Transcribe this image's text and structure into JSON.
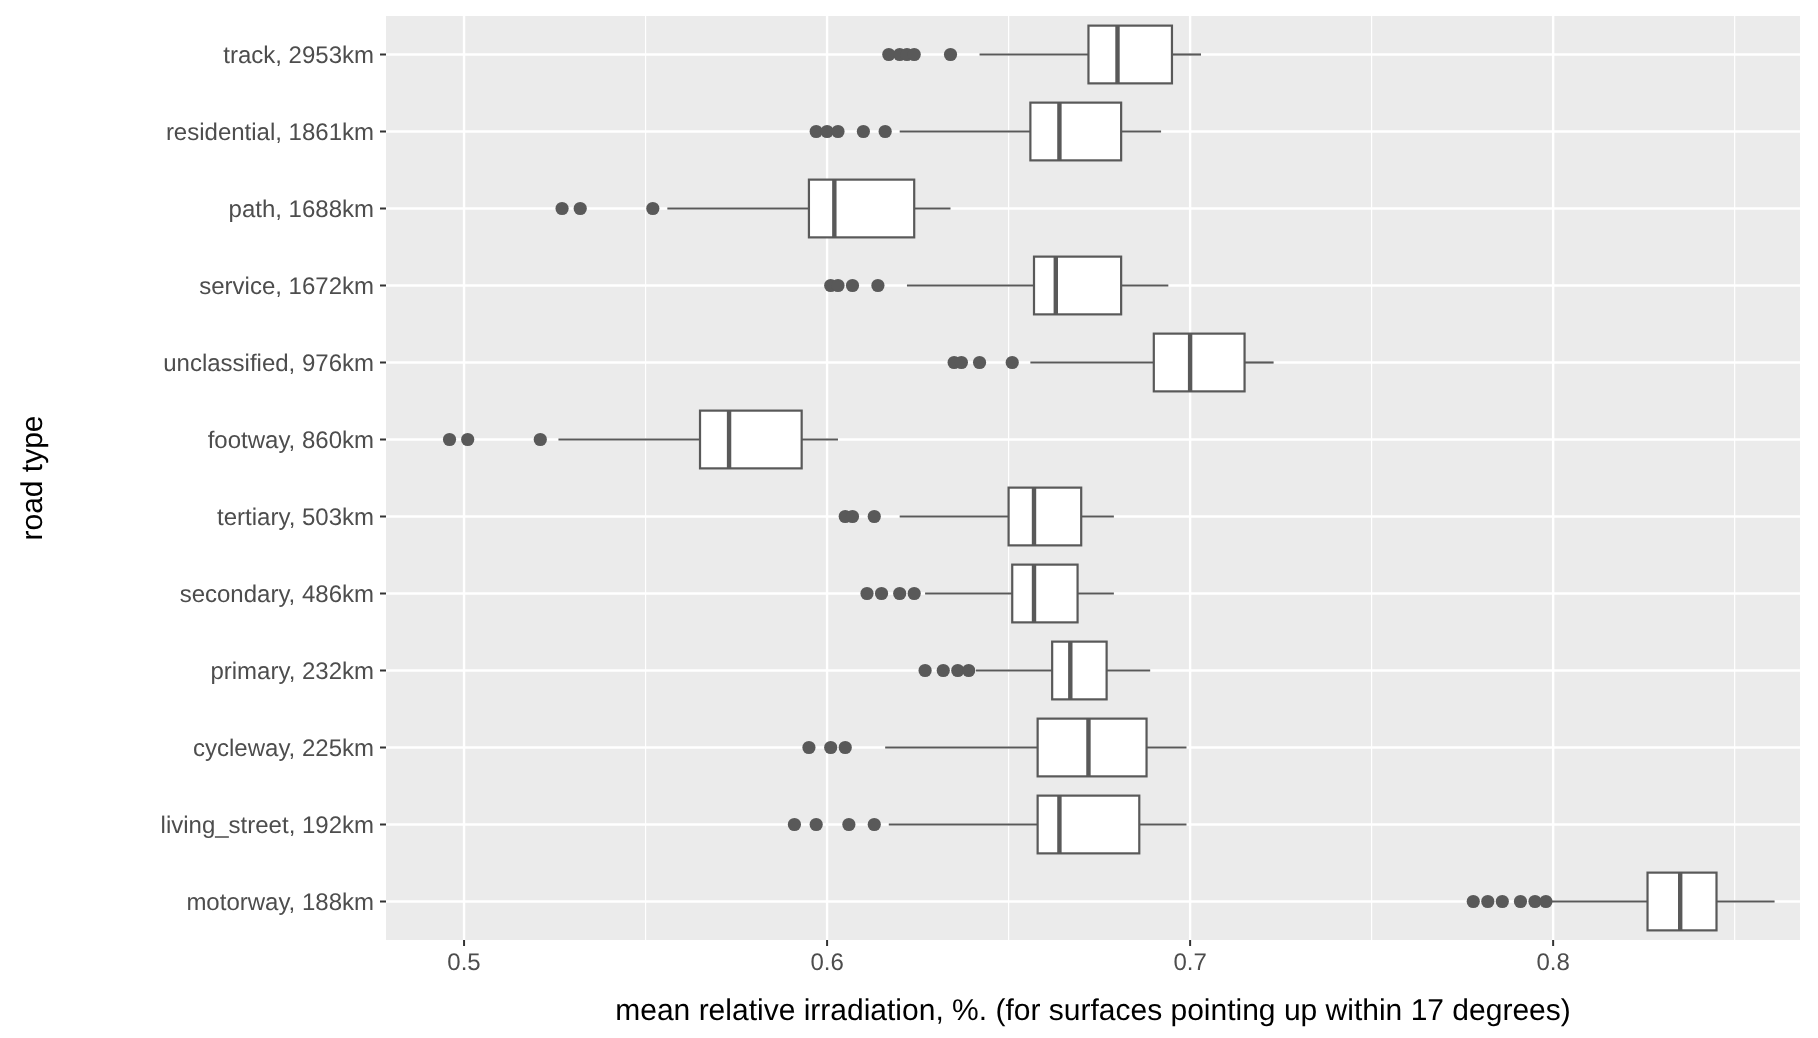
{
  "chart_data": {
    "type": "box",
    "orientation": "horizontal",
    "xlabel": "mean relative irradiation, %. (for surfaces pointing up within 17 degrees)",
    "ylabel": "road type",
    "categories": [
      "track, 2953km",
      "residential, 1861km",
      "path, 1688km",
      "service, 1672km",
      "unclassified, 976km",
      "footway, 860km",
      "tertiary, 503km",
      "secondary, 486km",
      "primary, 232km",
      "cycleway, 225km",
      "living_street, 192km",
      "motorway, 188km"
    ],
    "xlim": [
      0.4785,
      0.868
    ],
    "xticks": [
      0.5,
      0.6,
      0.7,
      0.8
    ],
    "grid": true,
    "color": "#595959",
    "boxes": [
      {
        "low": 0.642,
        "q1": 0.672,
        "median": 0.68,
        "q3": 0.695,
        "high": 0.703,
        "outliers": [
          0.617,
          0.62,
          0.622,
          0.624,
          0.634
        ]
      },
      {
        "low": 0.62,
        "q1": 0.656,
        "median": 0.664,
        "q3": 0.681,
        "high": 0.692,
        "outliers": [
          0.597,
          0.6,
          0.603,
          0.61,
          0.616
        ]
      },
      {
        "low": 0.556,
        "q1": 0.595,
        "median": 0.602,
        "q3": 0.624,
        "high": 0.634,
        "outliers": [
          0.527,
          0.532,
          0.552
        ]
      },
      {
        "low": 0.622,
        "q1": 0.657,
        "median": 0.663,
        "q3": 0.681,
        "high": 0.694,
        "outliers": [
          0.601,
          0.603,
          0.607,
          0.614
        ]
      },
      {
        "low": 0.656,
        "q1": 0.69,
        "median": 0.7,
        "q3": 0.715,
        "high": 0.723,
        "outliers": [
          0.635,
          0.637,
          0.642,
          0.651
        ]
      },
      {
        "low": 0.526,
        "q1": 0.565,
        "median": 0.573,
        "q3": 0.593,
        "high": 0.603,
        "outliers": [
          0.496,
          0.501,
          0.521
        ]
      },
      {
        "low": 0.62,
        "q1": 0.65,
        "median": 0.657,
        "q3": 0.67,
        "high": 0.679,
        "outliers": [
          0.605,
          0.607,
          0.613
        ]
      },
      {
        "low": 0.627,
        "q1": 0.651,
        "median": 0.657,
        "q3": 0.669,
        "high": 0.679,
        "outliers": [
          0.611,
          0.615,
          0.62,
          0.624
        ]
      },
      {
        "low": 0.641,
        "q1": 0.662,
        "median": 0.667,
        "q3": 0.677,
        "high": 0.689,
        "outliers": [
          0.627,
          0.632,
          0.636,
          0.639
        ]
      },
      {
        "low": 0.616,
        "q1": 0.658,
        "median": 0.672,
        "q3": 0.688,
        "high": 0.699,
        "outliers": [
          0.595,
          0.601,
          0.605
        ]
      },
      {
        "low": 0.617,
        "q1": 0.658,
        "median": 0.664,
        "q3": 0.686,
        "high": 0.699,
        "outliers": [
          0.591,
          0.597,
          0.606,
          0.613
        ]
      },
      {
        "low": 0.799,
        "q1": 0.826,
        "median": 0.835,
        "q3": 0.845,
        "high": 0.861,
        "outliers": [
          0.778,
          0.782,
          0.786,
          0.791,
          0.795,
          0.798
        ]
      }
    ]
  }
}
